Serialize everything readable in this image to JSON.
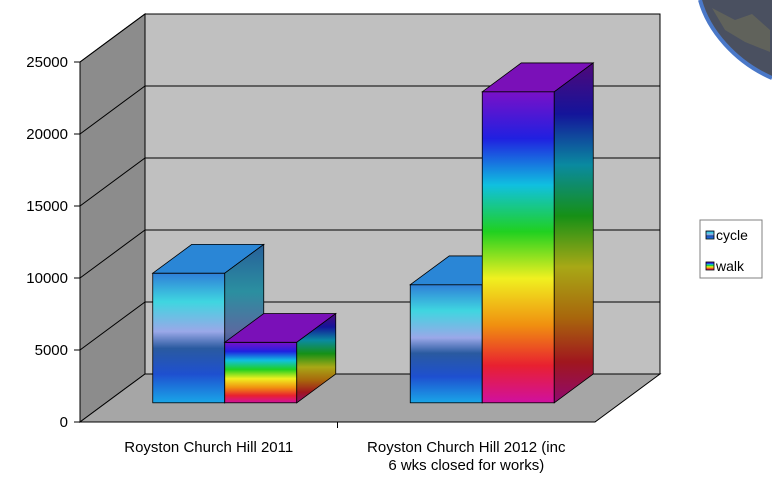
{
  "chart_data": {
    "type": "bar",
    "categories": [
      "Royston Church Hill 2011",
      "Royston Church Hill 2012 (inc 6 wks closed for works)"
    ],
    "category_lines": [
      [
        "Royston Church Hill 2011"
      ],
      [
        "Royston Church Hill 2012 (inc",
        "6 wks closed for works)"
      ]
    ],
    "series": [
      {
        "name": "cycle",
        "values": [
          9000,
          8200
        ]
      },
      {
        "name": "walk",
        "values": [
          4200,
          21600
        ]
      }
    ],
    "ylim": [
      0,
      25000
    ],
    "yticks": [
      0,
      5000,
      10000,
      15000,
      20000,
      25000
    ],
    "grid": true,
    "legend_position": "right",
    "colors": {
      "wall": "#c0c0c0",
      "floor": "#a6a6a6",
      "frame": "#000000",
      "legend_border": "#808080"
    },
    "three_d": true
  }
}
